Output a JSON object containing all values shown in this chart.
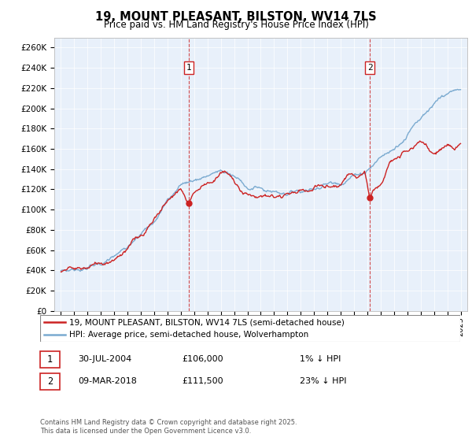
{
  "title": "19, MOUNT PLEASANT, BILSTON, WV14 7LS",
  "subtitle": "Price paid vs. HM Land Registry's House Price Index (HPI)",
  "ylabel_ticks": [
    "£0",
    "£20K",
    "£40K",
    "£60K",
    "£80K",
    "£100K",
    "£120K",
    "£140K",
    "£160K",
    "£180K",
    "£200K",
    "£220K",
    "£240K",
    "£260K"
  ],
  "ytick_values": [
    0,
    20000,
    40000,
    60000,
    80000,
    100000,
    120000,
    140000,
    160000,
    180000,
    200000,
    220000,
    240000,
    260000
  ],
  "ylim": [
    0,
    270000
  ],
  "xlim_start": 1994.5,
  "xlim_end": 2025.5,
  "background_color": "#e8f0fa",
  "red_color": "#cc2222",
  "blue_color": "#7aaad0",
  "marker1_year": 2004.58,
  "marker1_price": 106000,
  "marker1_date": "30-JUL-2004",
  "marker1_ann": "1% ↓ HPI",
  "marker2_year": 2018.18,
  "marker2_price": 111500,
  "marker2_date": "09-MAR-2018",
  "marker2_ann": "23% ↓ HPI",
  "legend_line1": "19, MOUNT PLEASANT, BILSTON, WV14 7LS (semi-detached house)",
  "legend_line2": "HPI: Average price, semi-detached house, Wolverhampton",
  "footnote": "Contains HM Land Registry data © Crown copyright and database right 2025.\nThis data is licensed under the Open Government Licence v3.0."
}
